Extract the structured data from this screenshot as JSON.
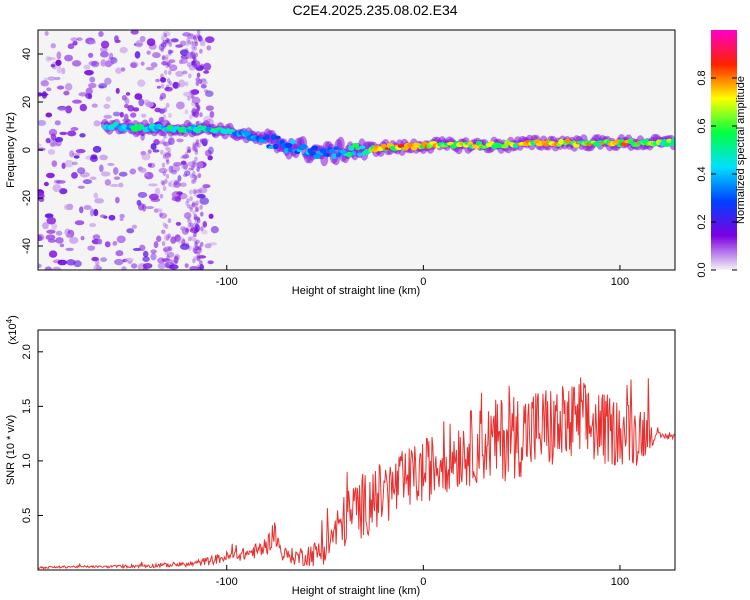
{
  "title": "C2E4.2025.235.08.02.E34",
  "chart_data": [
    {
      "type": "heatmap",
      "name": "spectrogram",
      "xlabel": "Height of straight line (km)",
      "ylabel": "Frequency (Hz)",
      "xlim": [
        -196,
        128
      ],
      "ylim": [
        -50,
        50
      ],
      "x_ticks": [
        -100,
        0,
        100
      ],
      "x_tick_labels": [
        "-100",
        "0",
        "100"
      ],
      "y_ticks": [
        -40,
        -20,
        0,
        20,
        40
      ],
      "y_tick_labels": [
        "-40",
        "-20",
        "0",
        "20",
        "40"
      ],
      "colorbar": {
        "label": "Normalized spectral amplitude",
        "range": [
          0,
          1
        ],
        "ticks": [
          0.0,
          0.2,
          0.4,
          0.6,
          0.8
        ],
        "tick_labels": [
          "0.0",
          "0.2",
          "0.4",
          "0.6",
          "0.8"
        ],
        "colors": [
          "#f4f4f4",
          "#7b00e0",
          "#0040ff",
          "#00e0ff",
          "#00ff40",
          "#ffff00",
          "#ff2000",
          "#ff00c8"
        ]
      },
      "ridge": {
        "x": [
          -160,
          -140,
          -120,
          -110,
          -100,
          -90,
          -80,
          -70,
          -60,
          -50,
          -40,
          -30,
          -20,
          -10,
          0,
          20,
          40,
          60,
          80,
          100,
          128
        ],
        "y": [
          10,
          9,
          9,
          9,
          8,
          6,
          4,
          2,
          0,
          -2,
          0,
          0,
          1,
          1,
          2,
          2,
          2,
          3,
          3,
          3,
          3
        ],
        "value": [
          0.45,
          0.5,
          0.5,
          0.5,
          0.45,
          0.4,
          0.35,
          0.35,
          0.4,
          0.35,
          0.45,
          0.6,
          0.75,
          0.8,
          0.75,
          0.7,
          0.7,
          0.7,
          0.7,
          0.75,
          0.6
        ]
      }
    },
    {
      "type": "line",
      "name": "snr",
      "xlabel": "Height of straight line (km)",
      "ylabel": "SNR (10 * v/v)",
      "multiplier_label": "(x10",
      "multiplier_exp": "4",
      "xlim": [
        -196,
        128
      ],
      "ylim": [
        0,
        2.2
      ],
      "x_ticks": [
        -100,
        0,
        100
      ],
      "x_tick_labels": [
        "-100",
        "0",
        "100"
      ],
      "y_ticks": [
        0.5,
        1.0,
        1.5,
        2.0
      ],
      "y_tick_labels": [
        "0.5",
        "1.0",
        "1.5",
        "2.0"
      ],
      "color": "#e8302e",
      "series": [
        {
          "name": "SNR",
          "x": [
            -196,
            -180,
            -160,
            -140,
            -120,
            -110,
            -100,
            -90,
            -80,
            -76,
            -72,
            -65,
            -55,
            -50,
            -45,
            -40,
            -35,
            -30,
            -20,
            -10,
            0,
            10,
            20,
            30,
            40,
            50,
            60,
            70,
            80,
            90,
            100,
            110,
            115,
            118,
            122,
            128
          ],
          "y": [
            0.02,
            0.03,
            0.03,
            0.04,
            0.05,
            0.08,
            0.12,
            0.15,
            0.2,
            0.35,
            0.15,
            0.12,
            0.15,
            0.2,
            0.35,
            0.45,
            0.55,
            0.6,
            0.7,
            0.8,
            0.9,
            1.0,
            1.1,
            1.15,
            1.2,
            1.25,
            1.3,
            1.3,
            1.35,
            1.3,
            1.25,
            1.25,
            1.3,
            1.22,
            1.23,
            1.22
          ],
          "noise": [
            0.01,
            0.01,
            0.01,
            0.02,
            0.02,
            0.04,
            0.05,
            0.06,
            0.08,
            0.12,
            0.06,
            0.08,
            0.12,
            0.15,
            0.2,
            0.25,
            0.3,
            0.3,
            0.3,
            0.3,
            0.3,
            0.3,
            0.35,
            0.35,
            0.4,
            0.4,
            0.4,
            0.4,
            0.4,
            0.35,
            0.3,
            0.3,
            0.2,
            0.04,
            0.03,
            0.03
          ]
        }
      ]
    }
  ]
}
